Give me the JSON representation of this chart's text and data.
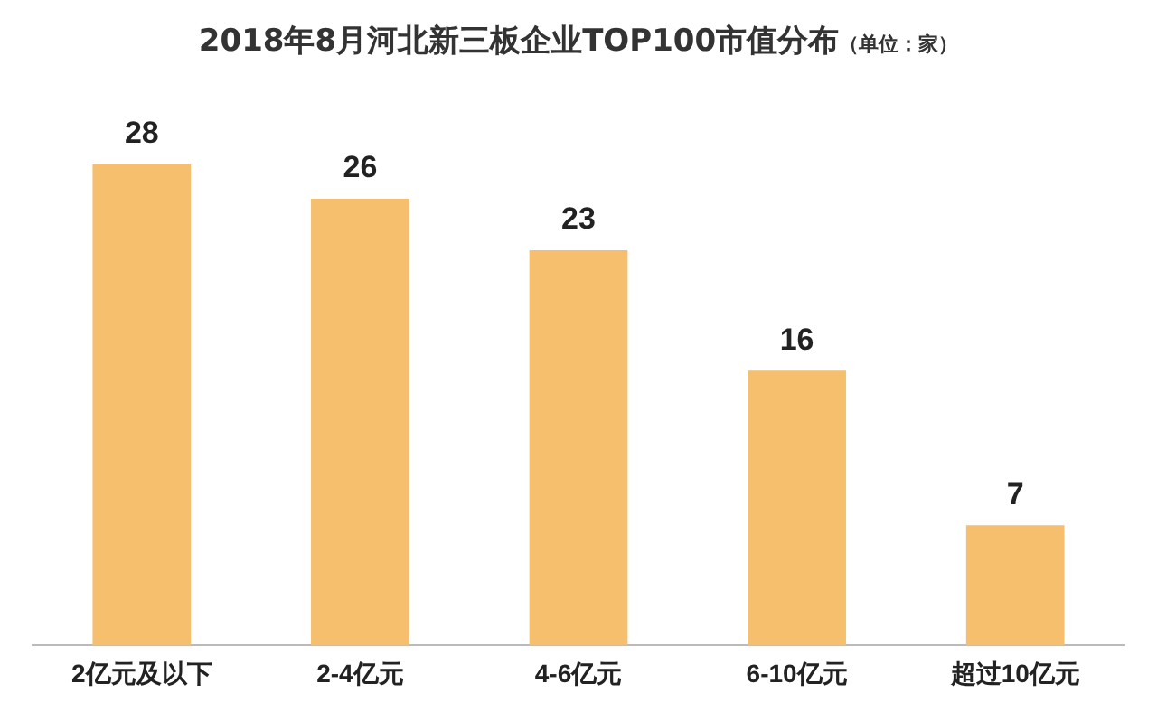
{
  "chart_data": {
    "type": "bar",
    "title": "2018年8月河北新三板企业TOP100市值分布",
    "subtitle": "（单位：家）",
    "categories": [
      "2亿元及以下",
      "2-4亿元",
      "4-6亿元",
      "6-10亿元",
      "超过10亿元"
    ],
    "values": [
      28,
      26,
      23,
      16,
      7
    ],
    "color": "#f5bf6e",
    "data_labels": true,
    "grid": false,
    "legend": false
  }
}
